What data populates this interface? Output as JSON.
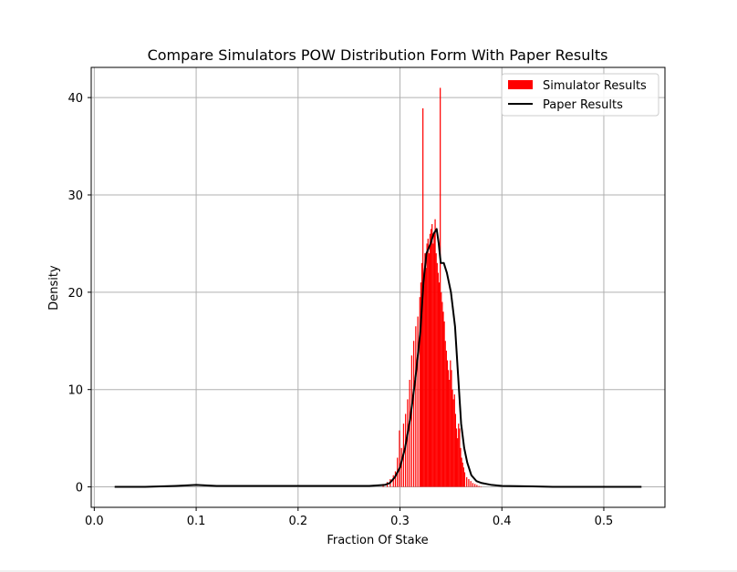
{
  "chart_data": {
    "type": "bar",
    "title": "Compare Simulators POW Distribution Form With Paper Results",
    "xlabel": "Fraction Of Stake",
    "ylabel": "Density",
    "xlim": [
      -0.003,
      0.56
    ],
    "ylim": [
      -2.1,
      43.1
    ],
    "xticks": [
      0.0,
      0.1,
      0.2,
      0.3,
      0.4,
      0.5
    ],
    "xtick_labels": [
      "0.0",
      "0.1",
      "0.2",
      "0.3",
      "0.4",
      "0.5"
    ],
    "yticks": [
      0,
      10,
      20,
      30,
      40
    ],
    "ytick_labels": [
      "0",
      "10",
      "20",
      "30",
      "40"
    ],
    "grid": true,
    "legend_position": "top-right",
    "series": [
      {
        "name": "Simulator Results",
        "kind": "histogram",
        "color": "#ff0000",
        "bin_width": 0.0011,
        "x": [
          0.2835,
          0.2875,
          0.2905,
          0.2935,
          0.2955,
          0.2975,
          0.2995,
          0.3015,
          0.3035,
          0.3055,
          0.3075,
          0.3095,
          0.3115,
          0.3135,
          0.3155,
          0.3175,
          0.3195,
          0.3205,
          0.3215,
          0.3225,
          0.3235,
          0.3245,
          0.3255,
          0.3265,
          0.3275,
          0.3285,
          0.3295,
          0.3305,
          0.3315,
          0.3325,
          0.3335,
          0.3345,
          0.3355,
          0.3365,
          0.3375,
          0.3385,
          0.3395,
          0.3405,
          0.3415,
          0.3425,
          0.3435,
          0.3445,
          0.3455,
          0.3465,
          0.3475,
          0.3485,
          0.3495,
          0.3505,
          0.3515,
          0.3525,
          0.3535,
          0.3545,
          0.3555,
          0.3565,
          0.3575,
          0.3585,
          0.3595,
          0.3605,
          0.3615,
          0.3625,
          0.3635,
          0.3655,
          0.3675,
          0.3695,
          0.3715,
          0.3735,
          0.3755,
          0.3775,
          0.3795
        ],
        "values": [
          0.3,
          0.5,
          0.8,
          1.2,
          1.6,
          3.0,
          5.8,
          4.0,
          6.5,
          7.5,
          9.0,
          11.0,
          13.5,
          15.0,
          16.5,
          17.5,
          19.5,
          21.0,
          23.0,
          38.9,
          22.0,
          24.0,
          22.5,
          25.0,
          25.5,
          24.0,
          26.0,
          26.5,
          27.0,
          25.0,
          26.0,
          27.5,
          24.0,
          23.0,
          22.0,
          21.0,
          41.0,
          20.0,
          19.0,
          18.0,
          17.0,
          15.0,
          14.0,
          13.0,
          12.0,
          11.0,
          13.0,
          12.0,
          10.0,
          9.0,
          9.5,
          7.5,
          6.0,
          5.0,
          6.5,
          6.0,
          4.0,
          3.0,
          2.5,
          2.0,
          1.5,
          1.0,
          0.8,
          0.6,
          0.4,
          0.3,
          0.2,
          0.1,
          0.05
        ]
      },
      {
        "name": "Paper Results",
        "kind": "line",
        "color": "#000000",
        "x": [
          0.02,
          0.05,
          0.08,
          0.1,
          0.12,
          0.15,
          0.18,
          0.2,
          0.22,
          0.25,
          0.27,
          0.285,
          0.29,
          0.295,
          0.3,
          0.305,
          0.31,
          0.315,
          0.32,
          0.323,
          0.326,
          0.33,
          0.333,
          0.336,
          0.338,
          0.34,
          0.343,
          0.346,
          0.35,
          0.354,
          0.357,
          0.36,
          0.363,
          0.366,
          0.37,
          0.375,
          0.38,
          0.39,
          0.4,
          0.43,
          0.45,
          0.5,
          0.537
        ],
        "values": [
          0.0,
          0.0,
          0.1,
          0.2,
          0.1,
          0.1,
          0.1,
          0.1,
          0.1,
          0.1,
          0.1,
          0.2,
          0.4,
          1.0,
          2.0,
          4.0,
          7.0,
          11.0,
          16.0,
          21.0,
          24.0,
          25.0,
          26.0,
          26.5,
          25.0,
          23.0,
          23.0,
          22.0,
          20.0,
          16.5,
          11.5,
          6.5,
          4.0,
          2.5,
          1.2,
          0.6,
          0.4,
          0.2,
          0.1,
          0.05,
          0.0,
          0.0,
          0.0
        ]
      }
    ]
  }
}
